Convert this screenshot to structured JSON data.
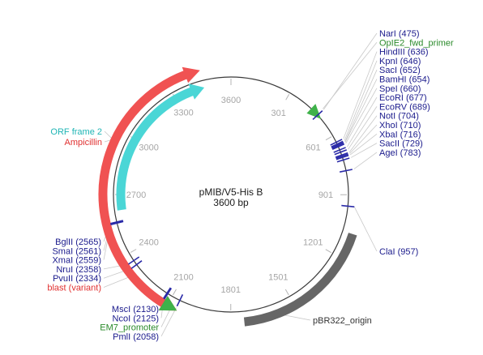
{
  "plasmid": {
    "name": "pMIB/V5-His B",
    "length_label": "3600 bp",
    "length_bp": 3600,
    "backbone_color": "#3a3a3a"
  },
  "ticks": [
    {
      "bp": 301,
      "label": "301"
    },
    {
      "bp": 601,
      "label": "601"
    },
    {
      "bp": 901,
      "label": "901"
    },
    {
      "bp": 1201,
      "label": "1201"
    },
    {
      "bp": 1501,
      "label": "1501"
    },
    {
      "bp": 1801,
      "label": "1801"
    },
    {
      "bp": 2100,
      "label": "2100"
    },
    {
      "bp": 2400,
      "label": "2400"
    },
    {
      "bp": 2700,
      "label": "2700"
    },
    {
      "bp": 3000,
      "label": "3000"
    },
    {
      "bp": 3300,
      "label": "3300"
    },
    {
      "bp": 3600,
      "label": "3600"
    }
  ],
  "features": [
    {
      "name": "Ampicillin",
      "start_bp": 2350,
      "end_bp": 3460,
      "color": "#f05252",
      "strand": "forward",
      "track": "outer"
    },
    {
      "name": "ORF frame 2",
      "start_bp": 2620,
      "end_bp": 3460,
      "color": "#4ad6d6",
      "strand": "forward",
      "track": "inner"
    },
    {
      "name": "blast (variant)",
      "start_bp": 2050,
      "end_bp": 2450,
      "color": "#f05252",
      "strand": "reverse",
      "track": "outer"
    },
    {
      "name": "EM7_promoter",
      "start_bp": 2050,
      "end_bp": 2110,
      "color": "#3fb24a",
      "strand": "reverse",
      "track": "outer"
    },
    {
      "name": "OpIE2_fwd_primer",
      "start_bp": 430,
      "end_bp": 500,
      "color": "#3fb24a",
      "strand": "forward",
      "track": "backbone"
    },
    {
      "name": "pBR322_origin",
      "start_bp": 1080,
      "end_bp": 1740,
      "color": "#666666",
      "strand": "none",
      "track": "outer"
    }
  ],
  "labels_right": [
    {
      "text": "NarI (475)",
      "bp": 475,
      "color": "#1a1a8c"
    },
    {
      "text": "OpIE2_fwd_primer",
      "bp": 470,
      "color": "#2a8a2a"
    },
    {
      "text": "HindIII (636)",
      "bp": 636,
      "color": "#1a1a8c"
    },
    {
      "text": "KpnI (646)",
      "bp": 646,
      "color": "#1a1a8c"
    },
    {
      "text": "SacI (652)",
      "bp": 652,
      "color": "#1a1a8c"
    },
    {
      "text": "BamHI (654)",
      "bp": 654,
      "color": "#1a1a8c"
    },
    {
      "text": "SpeI (660)",
      "bp": 660,
      "color": "#1a1a8c"
    },
    {
      "text": "EcoRI (677)",
      "bp": 677,
      "color": "#1a1a8c"
    },
    {
      "text": "EcoRV (689)",
      "bp": 689,
      "color": "#1a1a8c"
    },
    {
      "text": "NotI (704)",
      "bp": 704,
      "color": "#1a1a8c"
    },
    {
      "text": "XhoI (710)",
      "bp": 710,
      "color": "#1a1a8c"
    },
    {
      "text": "XbaI (716)",
      "bp": 716,
      "color": "#1a1a8c"
    },
    {
      "text": "SacII (729)",
      "bp": 729,
      "color": "#1a1a8c"
    },
    {
      "text": "AgeI (783)",
      "bp": 783,
      "color": "#1a1a8c"
    }
  ],
  "labels_right_lower": [
    {
      "text": "ClaI (957)",
      "bp": 957,
      "color": "#1a1a8c"
    },
    {
      "text": "pBR322_origin",
      "bp": 1560,
      "color": "#333333"
    }
  ],
  "labels_left_top": [
    {
      "text": "ORF frame 2",
      "bp": 2950,
      "color": "#1fb5b5"
    },
    {
      "text": "Ampicillin",
      "bp": 2950,
      "color": "#e03030"
    }
  ],
  "labels_left_bottom": [
    {
      "text": "BglII (2565)",
      "bp": 2565,
      "color": "#1a1a8c"
    },
    {
      "text": "SmaI (2561)",
      "bp": 2561,
      "color": "#1a1a8c"
    },
    {
      "text": "XmaI (2559)",
      "bp": 2559,
      "color": "#1a1a8c"
    },
    {
      "text": "NruI (2358)",
      "bp": 2358,
      "color": "#1a1a8c"
    },
    {
      "text": "PvuII (2334)",
      "bp": 2334,
      "color": "#1a1a8c"
    },
    {
      "text": "blast (variant)",
      "bp": 2300,
      "color": "#e03030"
    }
  ],
  "labels_bottom": [
    {
      "text": "MscI (2130)",
      "bp": 2130,
      "color": "#1a1a8c"
    },
    {
      "text": "NcoI (2125)",
      "bp": 2125,
      "color": "#1a1a8c"
    },
    {
      "text": "EM7_promoter",
      "bp": 2080,
      "color": "#2a8a2a"
    },
    {
      "text": "PmlI (2058)",
      "bp": 2058,
      "color": "#1a1a8c"
    }
  ],
  "site_marker_color": "#2a2aa8"
}
